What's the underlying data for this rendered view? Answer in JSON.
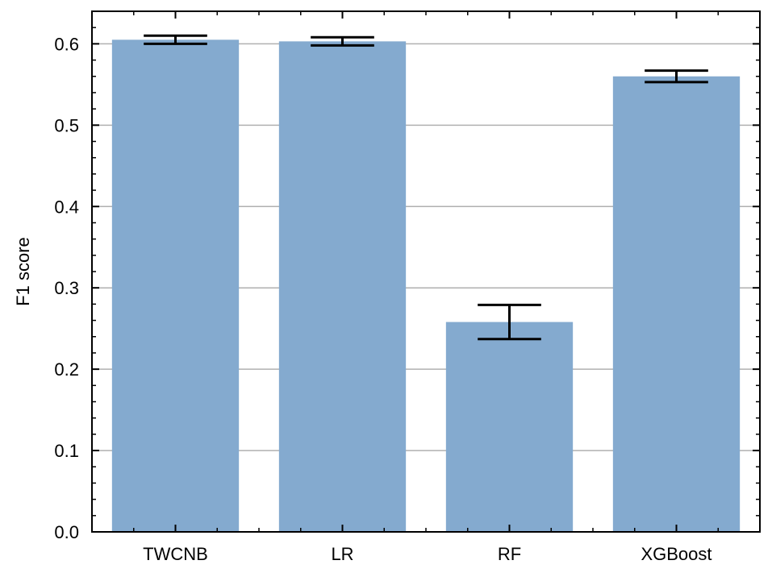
{
  "chart_data": {
    "type": "bar",
    "categories": [
      "TWCNB",
      "LR",
      "RF",
      "XGBoost"
    ],
    "values": [
      0.605,
      0.603,
      0.258,
      0.56
    ],
    "errors": [
      0.005,
      0.005,
      0.021,
      0.007
    ],
    "xlabel": "",
    "ylabel": "F1 score",
    "ylim": [
      0.0,
      0.64
    ],
    "yticks": [
      0.0,
      0.1,
      0.2,
      0.3,
      0.4,
      0.5,
      0.6
    ],
    "ytick_labels": [
      "0.0",
      "0.1",
      "0.2",
      "0.3",
      "0.4",
      "0.5",
      "0.6"
    ],
    "grid": "y-major",
    "bar_color": "#84aacf",
    "error_color": "#000000"
  }
}
